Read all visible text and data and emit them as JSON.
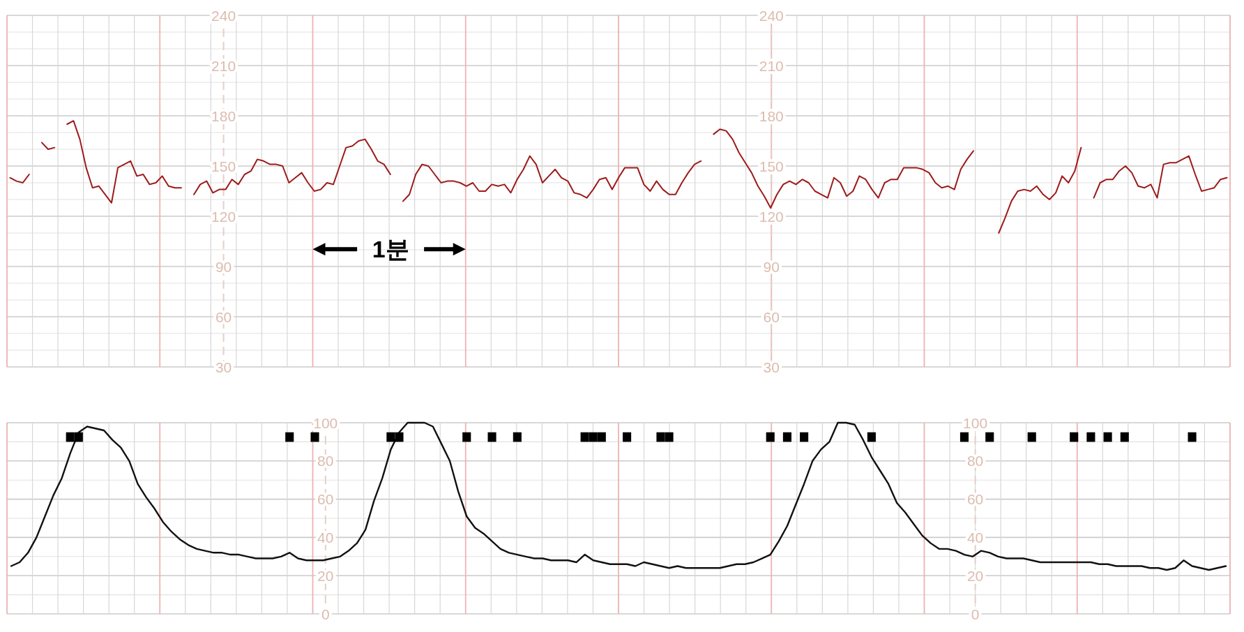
{
  "chart_data": [
    {
      "type": "line",
      "grid": true,
      "tick_labels": "y",
      "annotations": [
        "1분"
      ],
      "categories": [
        null,
        null,
        null,
        null,
        null,
        null,
        null,
        null,
        null,
        null,
        null,
        null,
        null,
        null,
        null,
        null,
        null,
        null,
        null,
        null,
        null,
        null,
        null,
        null,
        null,
        null,
        null,
        null,
        null,
        null,
        null,
        null,
        null,
        null,
        null,
        null,
        null,
        null,
        null,
        null,
        null,
        null,
        null,
        null,
        null,
        null,
        null,
        null,
        null,
        null,
        null,
        null,
        null,
        null,
        null,
        null,
        null,
        null,
        null,
        null,
        null,
        null,
        null,
        null,
        null,
        null,
        null,
        null,
        null,
        null,
        null,
        null,
        null,
        null,
        null,
        null,
        null,
        null,
        null,
        null,
        null,
        null,
        null,
        null,
        null,
        null,
        null,
        null,
        null,
        null,
        null,
        null,
        null,
        null,
        null,
        null,
        null,
        null,
        null,
        null,
        null,
        null,
        null,
        null,
        null,
        null,
        null,
        null,
        null,
        null,
        null,
        null,
        null,
        null,
        null,
        null,
        null,
        null,
        null,
        null,
        null,
        null,
        null,
        null,
        null,
        null,
        null,
        null,
        null,
        null,
        null,
        null,
        null,
        null,
        null,
        null,
        null,
        null,
        null,
        null,
        null,
        null,
        null,
        null,
        null,
        null,
        null,
        null,
        null,
        null,
        null,
        null,
        null,
        null,
        null,
        null,
        null,
        null,
        null,
        null,
        null,
        null,
        null,
        null,
        null,
        null,
        null,
        null,
        null,
        null,
        null,
        null,
        null,
        null,
        null,
        null,
        null,
        null,
        null,
        null,
        null,
        null,
        null,
        null,
        null,
        null,
        null,
        null,
        null,
        null,
        null,
        null,
        null
      ],
      "ylim": [
        30,
        240
      ],
      "yticks": [
        30,
        {
          "value": 40,
          "label": null
        },
        {
          "value": 50,
          "label": null
        },
        60,
        {
          "value": 70,
          "label": null
        },
        {
          "value": 80,
          "label": null
        },
        90,
        {
          "value": 100,
          "label": null
        },
        {
          "value": 110,
          "label": null
        },
        120,
        {
          "value": 130,
          "label": null
        },
        {
          "value": 140,
          "label": null
        },
        150,
        {
          "value": 160,
          "label": null
        },
        {
          "value": 170,
          "label": null
        },
        180,
        {
          "value": 190,
          "label": null
        },
        {
          "value": 200,
          "label": null
        },
        210,
        {
          "value": 220,
          "label": null
        },
        {
          "value": 230,
          "label": null
        },
        240
      ],
      "y2lim": [
        30,
        240
      ],
      "y2ticks": [
        30,
        60,
        90,
        120,
        150,
        180,
        210,
        240
      ],
      "series": [
        {
          "color": "#9c1b1b",
          "values": [
            143,
            141,
            140,
            145,
            null,
            164,
            160,
            161,
            null,
            175,
            177,
            166,
            149,
            137,
            138,
            133,
            128,
            149,
            151,
            153,
            144,
            145,
            139,
            140,
            144,
            138,
            137,
            137,
            null,
            133,
            139,
            141,
            134,
            136,
            136,
            142,
            139,
            145,
            147,
            154,
            153,
            151,
            151,
            150,
            140,
            143,
            146,
            140,
            135,
            136,
            140,
            139,
            150,
            161,
            162,
            165,
            166,
            160,
            153,
            151,
            145,
            null,
            129,
            133,
            145,
            151,
            150,
            145,
            140,
            141,
            141,
            140,
            138,
            140,
            135,
            135,
            139,
            138,
            139,
            134,
            142,
            148,
            156,
            151,
            140,
            144,
            148,
            143,
            141,
            134,
            133,
            131,
            136,
            142,
            143,
            136,
            143,
            149,
            149,
            149,
            139,
            135,
            141,
            136,
            133,
            133,
            140,
            146,
            151,
            153,
            null,
            169,
            172,
            171,
            166,
            158,
            152,
            146,
            138,
            132,
            125,
            133,
            139,
            141,
            139,
            142,
            140,
            135,
            133,
            131,
            143,
            140,
            132,
            135,
            144,
            142,
            136,
            131,
            140,
            142,
            142,
            149,
            149,
            149,
            148,
            146,
            140,
            137,
            138,
            136,
            148,
            154,
            159,
            null,
            null,
            null,
            110,
            119,
            129,
            135,
            136,
            135,
            138,
            133,
            130,
            134,
            144,
            140,
            147,
            161,
            null,
            131,
            140,
            142,
            142,
            147,
            150,
            146,
            138,
            137,
            139,
            131,
            151,
            152,
            152,
            154,
            156,
            145,
            135,
            136,
            137,
            142,
            143
          ]
        }
      ]
    },
    {
      "type": "bar",
      "grid": true,
      "tick_labels": "y",
      "categories": [
        null,
        null,
        null,
        null,
        null,
        null,
        null,
        null,
        null,
        null,
        null,
        null,
        null,
        null,
        null,
        null,
        null,
        null,
        null,
        null,
        null,
        null,
        null,
        null,
        null,
        null,
        null,
        null,
        null,
        null,
        null,
        null,
        null,
        null,
        null,
        null,
        null,
        null,
        null,
        null,
        null,
        null,
        null,
        null,
        null,
        null,
        null,
        null,
        null,
        null,
        null,
        null,
        null,
        null,
        null,
        null,
        null,
        null,
        null,
        null,
        null,
        null,
        null,
        null,
        null,
        null,
        null,
        null,
        null,
        null,
        null,
        null,
        null,
        null,
        null,
        null,
        null,
        null,
        null,
        null,
        null,
        null,
        null,
        null,
        null,
        null,
        null,
        null,
        null,
        null,
        null,
        null,
        null,
        null,
        null,
        null,
        null,
        null,
        null,
        null,
        null,
        null,
        null,
        null,
        null,
        null,
        null,
        null,
        null,
        null,
        null,
        null,
        null,
        null,
        null,
        null,
        null,
        null,
        null,
        null,
        null,
        null,
        null,
        null,
        null,
        null,
        null,
        null,
        null,
        null,
        null,
        null,
        null,
        null,
        null,
        null,
        null,
        null,
        null,
        null,
        null,
        null,
        null,
        null,
        null
      ],
      "ylim": [
        0,
        100
      ],
      "yticks": [
        0,
        {
          "value": 10,
          "label": null
        },
        20,
        {
          "value": 30,
          "label": null
        },
        40,
        {
          "value": 50,
          "label": null
        },
        60,
        {
          "value": 70,
          "label": null
        },
        80,
        {
          "value": 90,
          "label": null
        },
        100
      ],
      "y2lim": [
        0,
        100
      ],
      "y2ticks": [
        0,
        20,
        40,
        60,
        80,
        100
      ],
      "series": [
        {
          "type": "line",
          "color": "#111111",
          "values": [
            25,
            27,
            32,
            40,
            51,
            62,
            71,
            84,
            95,
            98,
            97,
            96,
            91,
            87,
            80,
            68,
            61,
            55,
            48,
            43,
            39,
            36,
            34,
            33,
            32,
            32,
            31,
            31,
            30,
            29,
            29,
            29,
            30,
            32,
            29,
            28,
            28,
            28,
            29,
            30,
            33,
            37,
            44,
            59,
            71,
            86,
            95,
            100,
            100,
            100,
            98,
            89,
            80,
            64,
            51,
            45,
            42,
            38,
            34,
            32,
            31,
            30,
            29,
            29,
            28,
            28,
            28,
            27,
            31,
            28,
            27,
            26,
            26,
            26,
            25,
            27,
            26,
            25,
            24,
            25,
            24,
            24,
            24,
            24,
            24,
            25,
            26,
            26,
            27,
            29,
            31,
            38,
            46,
            57,
            68,
            80,
            86,
            90,
            100,
            100,
            99,
            91,
            82,
            75,
            68,
            58,
            53,
            47,
            41,
            37,
            34,
            34,
            33,
            31,
            30,
            33,
            32,
            30,
            29,
            29,
            29,
            28,
            27,
            27,
            27,
            27,
            27,
            27,
            27,
            26,
            26,
            25,
            25,
            25,
            25,
            24,
            24,
            23,
            24,
            28,
            25,
            24,
            23,
            24,
            25
          ]
        },
        {
          "color": "#000000",
          "base": [
            null,
            null,
            null,
            null,
            null,
            null,
            null,
            90,
            90,
            null,
            null,
            null,
            null,
            null,
            null,
            null,
            null,
            null,
            null,
            null,
            null,
            null,
            null,
            null,
            null,
            null,
            null,
            null,
            null,
            null,
            null,
            null,
            null,
            90,
            null,
            null,
            90,
            null,
            null,
            null,
            null,
            null,
            null,
            null,
            null,
            90,
            90,
            null,
            null,
            null,
            null,
            null,
            null,
            null,
            90,
            null,
            null,
            90,
            null,
            null,
            90,
            null,
            null,
            null,
            null,
            null,
            null,
            null,
            90,
            90,
            90,
            null,
            null,
            90,
            null,
            null,
            null,
            90,
            90,
            null,
            null,
            null,
            null,
            null,
            null,
            null,
            null,
            null,
            null,
            null,
            90,
            null,
            90,
            null,
            90,
            null,
            null,
            null,
            null,
            null,
            null,
            null,
            90,
            null,
            null,
            null,
            null,
            null,
            null,
            null,
            null,
            null,
            null,
            90,
            null,
            null,
            90,
            null,
            null,
            null,
            null,
            90,
            null,
            null,
            null,
            null,
            90,
            null,
            90,
            null,
            90,
            null,
            90,
            null,
            null,
            null,
            null,
            null,
            null,
            null,
            90,
            null,
            null,
            null,
            null
          ],
          "values": [
            null,
            null,
            null,
            null,
            null,
            null,
            null,
            5,
            5,
            null,
            null,
            null,
            null,
            null,
            null,
            null,
            null,
            null,
            null,
            null,
            null,
            null,
            null,
            null,
            null,
            null,
            null,
            null,
            null,
            null,
            null,
            null,
            null,
            5,
            null,
            null,
            5,
            null,
            null,
            null,
            null,
            null,
            null,
            null,
            null,
            5,
            5,
            null,
            null,
            null,
            null,
            null,
            null,
            null,
            5,
            null,
            null,
            5,
            null,
            null,
            5,
            null,
            null,
            null,
            null,
            null,
            null,
            null,
            5,
            5,
            5,
            null,
            null,
            5,
            null,
            null,
            null,
            5,
            5,
            null,
            null,
            null,
            null,
            null,
            null,
            null,
            null,
            null,
            null,
            null,
            5,
            null,
            5,
            null,
            5,
            null,
            null,
            null,
            null,
            null,
            null,
            null,
            5,
            null,
            null,
            null,
            null,
            null,
            null,
            null,
            null,
            null,
            null,
            5,
            null,
            null,
            5,
            null,
            null,
            null,
            null,
            5,
            null,
            null,
            null,
            null,
            5,
            null,
            5,
            null,
            5,
            null,
            5,
            null,
            null,
            null,
            null,
            null,
            null,
            null,
            5,
            null,
            null,
            null,
            null
          ]
        }
      ]
    }
  ]
}
